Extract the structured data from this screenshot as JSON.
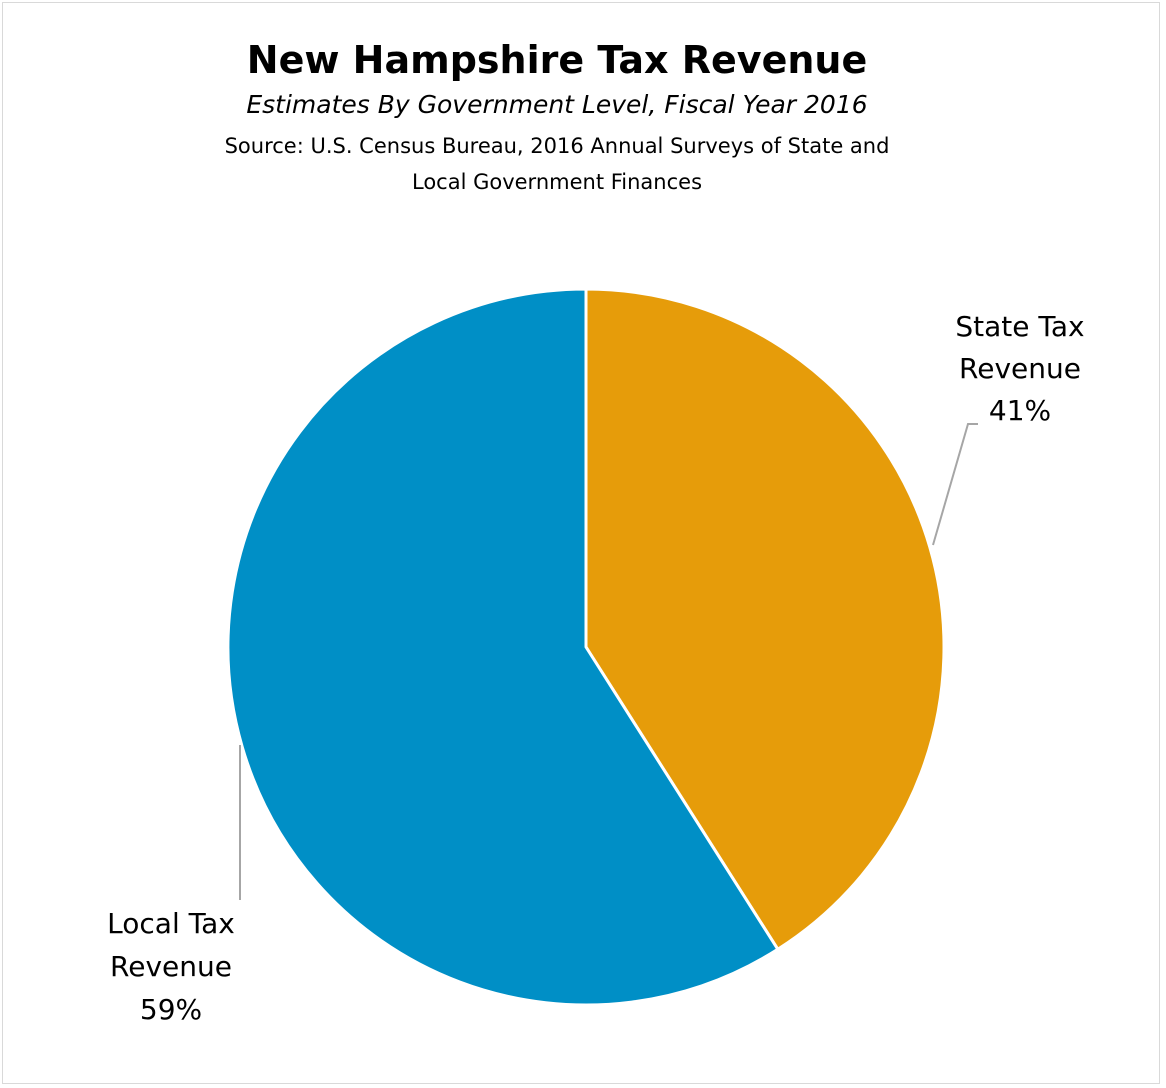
{
  "chart_data": {
    "type": "pie",
    "title": "New Hampshire Tax Revenue",
    "subtitle": "Estimates By Government Level, Fiscal Year 2016",
    "source_lines": [
      "Source: U.S. Census Bureau, 2016 Annual Surveys of State and",
      "Local Government Finances"
    ],
    "slices": [
      {
        "name": "State Tax Revenue",
        "label_lines": [
          "State Tax",
          "Revenue"
        ],
        "percent_label": "41%",
        "value": 41,
        "color": "#E69C0A"
      },
      {
        "name": "Local Tax Revenue",
        "label_lines": [
          "Local Tax",
          "Revenue"
        ],
        "percent_label": "59%",
        "value": 59,
        "color": "#008FC6"
      }
    ],
    "start_angle": "12 o'clock",
    "direction": "clockwise",
    "legend": "none",
    "leader_line_color": "#a6a6a6"
  }
}
